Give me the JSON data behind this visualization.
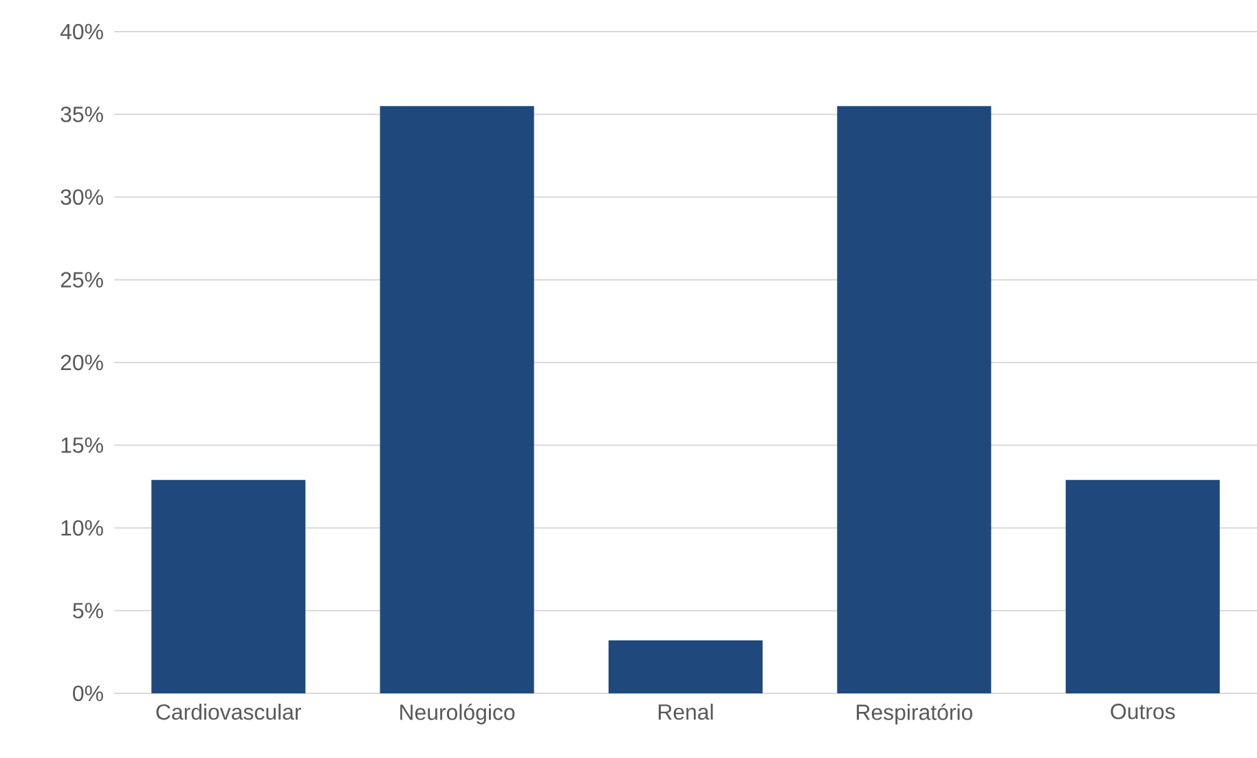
{
  "chart_data": {
    "type": "bar",
    "categories": [
      "Cardiovascular",
      "Neurológico",
      "Renal",
      "Respiratório",
      "Outros"
    ],
    "values": [
      12.9,
      35.5,
      3.2,
      35.5,
      12.9
    ],
    "color": "#1f497d",
    "ylim": [
      0,
      40
    ],
    "yticks": [
      {
        "value": 0,
        "label": "0%"
      },
      {
        "value": 5,
        "label": "5%"
      },
      {
        "value": 10,
        "label": "10%"
      },
      {
        "value": 15,
        "label": "15%"
      },
      {
        "value": 20,
        "label": "20%"
      },
      {
        "value": 25,
        "label": "25%"
      },
      {
        "value": 30,
        "label": "30%"
      },
      {
        "value": 35,
        "label": "35%"
      },
      {
        "value": 40,
        "label": "40%"
      }
    ],
    "grid": "y"
  }
}
